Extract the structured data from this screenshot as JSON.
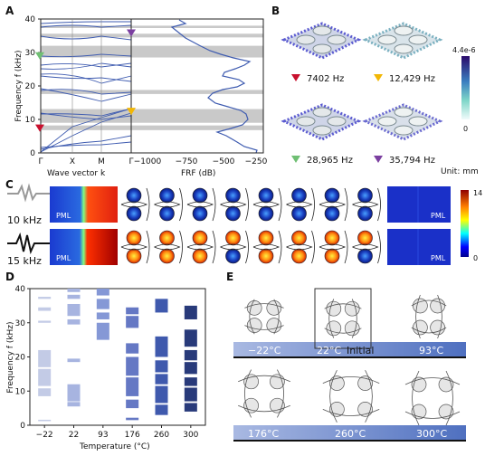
{
  "panels": {
    "a": "A",
    "b": "B",
    "c": "C",
    "d": "D",
    "e": "E"
  },
  "panel_a": {
    "ylabel": "Frequency f (kHz)",
    "yticks": [
      "0",
      "10",
      "20",
      "30",
      "40"
    ],
    "xticks_band": [
      "Γ",
      "X",
      "M",
      "Γ"
    ],
    "xlabel_band": "Wave vector k",
    "xticks_frf": [
      "−1000",
      "−750",
      "−500",
      "−250"
    ],
    "xlabel_frf": "FRF (dB)",
    "bandgaps_khz": [
      [
        6.8,
        8.2
      ],
      [
        9.0,
        13.1
      ],
      [
        17.6,
        18.8
      ],
      [
        28.5,
        32.0
      ],
      [
        34.5,
        35.6
      ],
      [
        37.3,
        38.0
      ]
    ],
    "markers": [
      {
        "shape": "down-triangle",
        "color": "#c8102e",
        "frequency_khz": 7.4
      },
      {
        "shape": "down-triangle",
        "color": "#f2b705",
        "frequency_khz": 12.4
      },
      {
        "shape": "down-triangle",
        "color": "#6fbf73",
        "frequency_khz": 29.0
      },
      {
        "shape": "down-triangle",
        "color": "#7b3fa0",
        "frequency_khz": 35.8
      }
    ]
  },
  "panel_b": {
    "modes": [
      {
        "label": "7402 Hz",
        "color": "#c8102e"
      },
      {
        "label": "12,429 Hz",
        "color": "#f2b705"
      },
      {
        "label": "28,965 Hz",
        "color": "#6fbf73"
      },
      {
        "label": "35,794 Hz",
        "color": "#7b3fa0"
      }
    ],
    "colorbar_max": "4.4e-6",
    "colorbar_min": "0",
    "unit": "Unit: mm"
  },
  "panel_c": {
    "rows": [
      {
        "freq": "10 kHz",
        "pml_left": "PML",
        "pml_right": "PML"
      },
      {
        "freq": "15 kHz",
        "pml_left": "PML",
        "pml_right": "PML"
      }
    ],
    "colorbar_max": "14",
    "colorbar_min": "0"
  },
  "panel_d": {
    "ylabel": "Frequency f (kHz)",
    "yticks": [
      "0",
      "10",
      "20",
      "30",
      "40"
    ],
    "xlabel": "Temperature   (°C)",
    "temperatures": [
      "−22",
      "22",
      "93",
      "176",
      "260",
      "300"
    ]
  },
  "panel_e": {
    "states": [
      {
        "label": "−22°C"
      },
      {
        "label": "22°C"
      },
      {
        "label": "Initial"
      },
      {
        "label": "93°C"
      },
      {
        "label": "176°C"
      },
      {
        "label": "260°C"
      },
      {
        "label": "300°C"
      }
    ]
  },
  "chart_data": [
    {
      "type": "bar",
      "title": "",
      "xlabel": "Temperature   (°C)",
      "ylabel": "Frequency f (kHz)",
      "ylim": [
        0,
        40
      ],
      "categories": [
        "−22",
        "22",
        "93",
        "176",
        "260",
        "300"
      ],
      "bandgaps_khz": [
        [
          [
            1.2,
            1.6
          ],
          [
            8.5,
            10.8
          ],
          [
            11.5,
            16.5
          ],
          [
            17.0,
            22.0
          ],
          [
            30.0,
            30.6
          ],
          [
            33.5,
            34.5
          ],
          [
            37.0,
            37.6
          ]
        ],
        [
          [
            5.5,
            6.8
          ],
          [
            7.0,
            12.0
          ],
          [
            18.5,
            19.5
          ],
          [
            29.5,
            31.0
          ],
          [
            32.0,
            35.5
          ],
          [
            37.0,
            38.2
          ],
          [
            39.0,
            40.0
          ]
        ],
        [
          [
            25.0,
            30.0
          ],
          [
            31.0,
            33.0
          ],
          [
            34.0,
            37.0
          ],
          [
            38.0,
            40.0
          ]
        ],
        [
          [
            1.5,
            2.2
          ],
          [
            5.0,
            7.5
          ],
          [
            8.5,
            14.0
          ],
          [
            14.5,
            20.0
          ],
          [
            21.0,
            24.0
          ],
          [
            28.5,
            32.0
          ],
          [
            32.5,
            34.5
          ]
        ],
        [
          [
            3.0,
            6.0
          ],
          [
            6.5,
            11.5
          ],
          [
            12.0,
            15.0
          ],
          [
            15.5,
            19.0
          ],
          [
            20.0,
            26.0
          ],
          [
            33.0,
            37.0
          ]
        ],
        [
          [
            4.0,
            6.5
          ],
          [
            7.0,
            11.0
          ],
          [
            11.5,
            14.0
          ],
          [
            15.0,
            18.5
          ],
          [
            19.0,
            22.0
          ],
          [
            23.0,
            28.0
          ],
          [
            31.0,
            35.0
          ]
        ]
      ]
    }
  ]
}
